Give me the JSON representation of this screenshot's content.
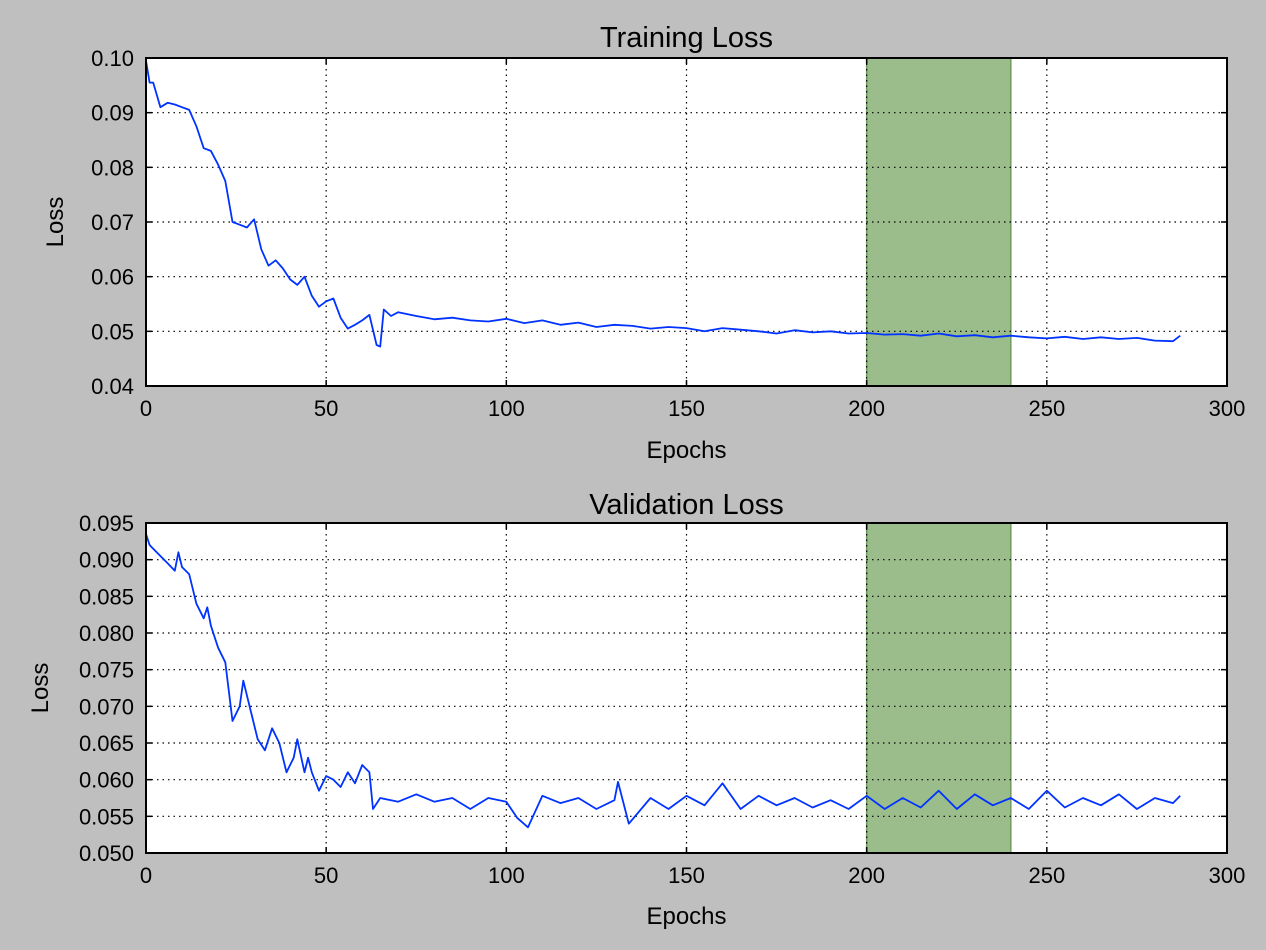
{
  "colors": {
    "background": "#bfbfbf",
    "plot_bg": "#ffffff",
    "line": "#0033ff",
    "highlight": "#9bbd8b",
    "highlight_edge": "#6f9a5e",
    "grid": "#000000"
  },
  "chart_data": [
    {
      "type": "line",
      "title": "Training Loss",
      "xlabel": "Epochs",
      "ylabel": "Loss",
      "xlim": [
        0,
        300
      ],
      "ylim": [
        0.04,
        0.1
      ],
      "xticks": [
        0,
        50,
        100,
        150,
        200,
        250,
        300
      ],
      "yticks": [
        0.04,
        0.05,
        0.06,
        0.07,
        0.08,
        0.09,
        0.1
      ],
      "xtick_labels": [
        "0",
        "50",
        "100",
        "150",
        "200",
        "250",
        "300"
      ],
      "ytick_labels": [
        "0.04",
        "0.05",
        "0.06",
        "0.07",
        "0.08",
        "0.09",
        "0.10"
      ],
      "grid": true,
      "highlight_span": [
        200,
        240
      ],
      "series": [
        {
          "color": "#0033ff",
          "x": [
            0,
            1,
            2,
            4,
            6,
            8,
            10,
            12,
            14,
            16,
            18,
            20,
            22,
            24,
            26,
            28,
            30,
            32,
            34,
            36,
            38,
            40,
            42,
            44,
            46,
            48,
            50,
            52,
            54,
            56,
            58,
            60,
            62,
            64,
            65,
            66,
            68,
            70,
            75,
            80,
            85,
            90,
            95,
            100,
            105,
            110,
            115,
            120,
            125,
            130,
            135,
            140,
            145,
            150,
            155,
            160,
            165,
            170,
            175,
            180,
            185,
            190,
            195,
            200,
            205,
            210,
            215,
            220,
            225,
            230,
            235,
            240,
            245,
            250,
            255,
            260,
            265,
            270,
            275,
            280,
            285,
            287
          ],
          "y": [
            0.0995,
            0.0955,
            0.0955,
            0.091,
            0.0918,
            0.0915,
            0.091,
            0.0905,
            0.0875,
            0.0835,
            0.083,
            0.0805,
            0.0775,
            0.07,
            0.0695,
            0.069,
            0.0705,
            0.065,
            0.062,
            0.063,
            0.0615,
            0.0595,
            0.0585,
            0.06,
            0.0565,
            0.0545,
            0.0555,
            0.056,
            0.0525,
            0.0505,
            0.0512,
            0.052,
            0.053,
            0.0475,
            0.0472,
            0.054,
            0.0528,
            0.0535,
            0.0528,
            0.0522,
            0.0525,
            0.052,
            0.0518,
            0.0523,
            0.0515,
            0.052,
            0.0512,
            0.0516,
            0.0508,
            0.0512,
            0.051,
            0.0505,
            0.0508,
            0.0506,
            0.05,
            0.0506,
            0.0503,
            0.05,
            0.0496,
            0.0502,
            0.0498,
            0.05,
            0.0496,
            0.0497,
            0.0494,
            0.0495,
            0.0492,
            0.0496,
            0.0491,
            0.0493,
            0.0489,
            0.0492,
            0.0489,
            0.0487,
            0.049,
            0.0486,
            0.0489,
            0.0486,
            0.0488,
            0.0483,
            0.0482,
            0.0492
          ]
        }
      ]
    },
    {
      "type": "line",
      "title": "Validation Loss",
      "xlabel": "Epochs",
      "ylabel": "Loss",
      "xlim": [
        0,
        300
      ],
      "ylim": [
        0.05,
        0.095
      ],
      "xticks": [
        0,
        50,
        100,
        150,
        200,
        250,
        300
      ],
      "yticks": [
        0.05,
        0.055,
        0.06,
        0.065,
        0.07,
        0.075,
        0.08,
        0.085,
        0.09,
        0.095
      ],
      "xtick_labels": [
        "0",
        "50",
        "100",
        "150",
        "200",
        "250",
        "300"
      ],
      "ytick_labels": [
        "0.050",
        "0.055",
        "0.060",
        "0.065",
        "0.070",
        "0.075",
        "0.080",
        "0.085",
        "0.090",
        "0.095"
      ],
      "grid": true,
      "highlight_span": [
        200,
        240
      ],
      "series": [
        {
          "color": "#0033ff",
          "x": [
            0,
            1,
            2,
            4,
            6,
            8,
            9,
            10,
            12,
            14,
            16,
            17,
            18,
            20,
            22,
            23,
            24,
            26,
            27,
            29,
            31,
            33,
            35,
            37,
            39,
            41,
            42,
            44,
            45,
            46,
            48,
            50,
            52,
            54,
            56,
            58,
            60,
            62,
            63,
            65,
            70,
            75,
            80,
            85,
            90,
            95,
            100,
            103,
            106,
            110,
            115,
            120,
            125,
            130,
            131,
            134,
            140,
            145,
            150,
            155,
            160,
            165,
            170,
            175,
            180,
            185,
            190,
            195,
            200,
            205,
            210,
            215,
            220,
            225,
            230,
            235,
            240,
            245,
            250,
            255,
            260,
            265,
            270,
            275,
            280,
            285,
            287
          ],
          "y": [
            0.0935,
            0.092,
            0.0915,
            0.0905,
            0.0895,
            0.0885,
            0.091,
            0.089,
            0.088,
            0.084,
            0.082,
            0.0835,
            0.081,
            0.078,
            0.076,
            0.072,
            0.068,
            0.07,
            0.0735,
            0.0695,
            0.0655,
            0.064,
            0.067,
            0.065,
            0.061,
            0.063,
            0.0655,
            0.061,
            0.063,
            0.061,
            0.0585,
            0.0605,
            0.06,
            0.059,
            0.061,
            0.0595,
            0.062,
            0.061,
            0.056,
            0.0575,
            0.057,
            0.058,
            0.057,
            0.0575,
            0.056,
            0.0575,
            0.057,
            0.0548,
            0.0535,
            0.0578,
            0.0568,
            0.0575,
            0.056,
            0.0572,
            0.0597,
            0.054,
            0.0575,
            0.056,
            0.0578,
            0.0565,
            0.0595,
            0.056,
            0.0578,
            0.0565,
            0.0575,
            0.0562,
            0.0572,
            0.056,
            0.0578,
            0.056,
            0.0575,
            0.0562,
            0.0585,
            0.056,
            0.058,
            0.0565,
            0.0575,
            0.056,
            0.0585,
            0.0562,
            0.0575,
            0.0565,
            0.058,
            0.056,
            0.0575,
            0.0568,
            0.0578
          ]
        }
      ]
    }
  ]
}
